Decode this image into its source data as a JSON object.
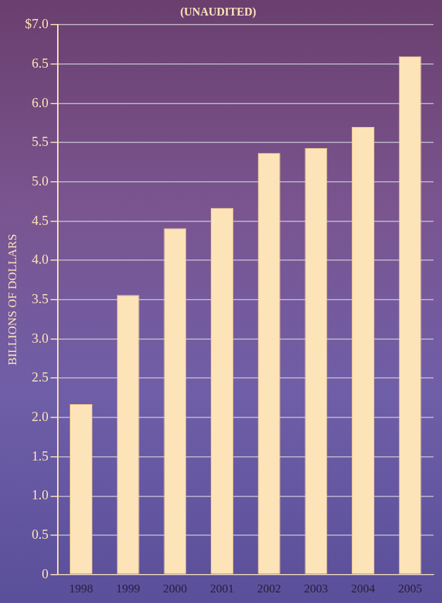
{
  "chart_data": {
    "type": "bar",
    "title": "(UNAUDITED)",
    "y_label": "BILLIONS OF DOLLARS",
    "categories": [
      "1998",
      "1999",
      "2000",
      "2001",
      "2002",
      "2003",
      "2004",
      "2005"
    ],
    "values": [
      2.17,
      3.56,
      4.41,
      4.67,
      5.37,
      5.43,
      5.7,
      6.6
    ],
    "color": "#fde3b8",
    "ylim": [
      0,
      7
    ],
    "yticks": [
      0,
      0.5,
      {
        "value": 1,
        "label": "1.0"
      },
      1.5,
      {
        "value": 2,
        "label": "2.0"
      },
      2.5,
      {
        "value": 3,
        "label": "3.0"
      },
      3.5,
      {
        "value": 4,
        "label": "4.0"
      },
      4.5,
      {
        "value": 5,
        "label": "5.0"
      },
      5.5,
      {
        "value": 6,
        "label": "6.0"
      },
      6.5,
      {
        "value": 7,
        "label": "$7.0"
      }
    ],
    "grid": true
  }
}
